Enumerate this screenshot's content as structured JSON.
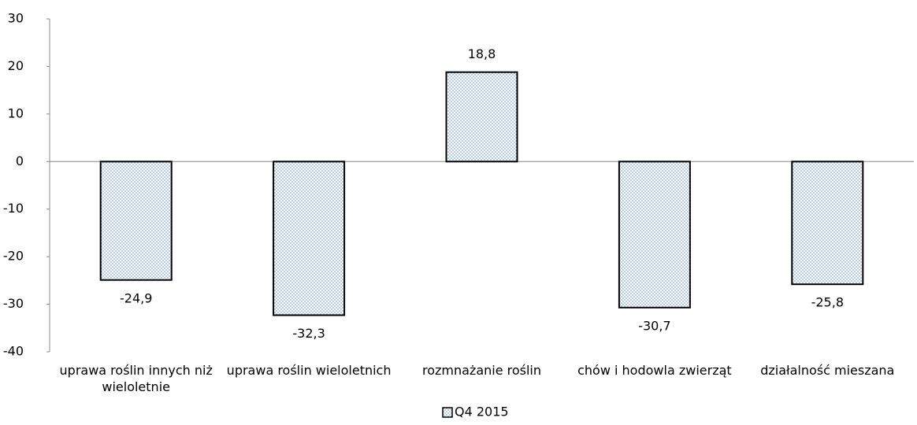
{
  "chart_data": {
    "type": "bar",
    "categories": [
      "uprawa roślin innych niż wieloletnie",
      "uprawa roślin wieloletnich",
      "rozmnażanie roślin",
      "chów i hodowla zwierząt",
      "działalność mieszana"
    ],
    "series": [
      {
        "name": "Q4 2015",
        "color": "#4f81bd",
        "values": [
          -24.9,
          -32.3,
          18.8,
          -30.7,
          -25.8
        ],
        "value_labels": [
          "-24,9",
          "-32,3",
          "18,8",
          "-30,7",
          "-25,8"
        ]
      }
    ],
    "ylim": [
      -40,
      30
    ],
    "yticks": [
      -40,
      -30,
      -20,
      -10,
      0,
      10,
      20,
      30
    ],
    "grid": false,
    "legend": "bottom"
  }
}
